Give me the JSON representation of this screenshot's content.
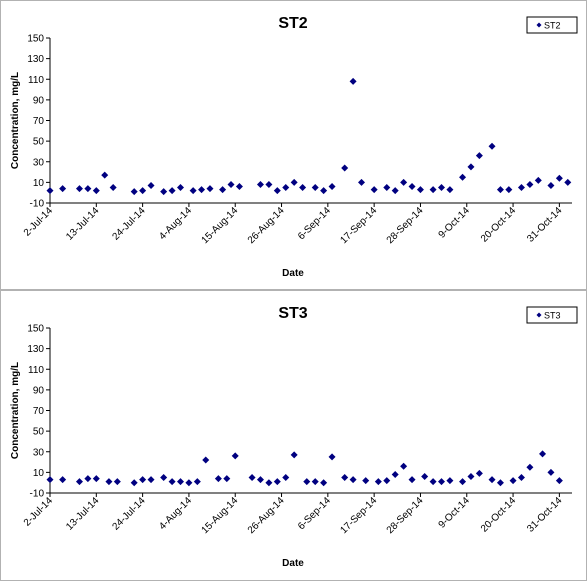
{
  "chart_data": [
    {
      "type": "scatter",
      "title": "ST2",
      "xlabel": "Date",
      "ylabel": "Concentration, mg/L",
      "legend": "upper right",
      "x": [
        "2014-07-02",
        "2014-07-05",
        "2014-07-09",
        "2014-07-11",
        "2014-07-13",
        "2014-07-15",
        "2014-07-17",
        "2014-07-22",
        "2014-07-24",
        "2014-07-26",
        "2014-07-29",
        "2014-07-31",
        "2014-08-02",
        "2014-08-05",
        "2014-08-07",
        "2014-08-09",
        "2014-08-12",
        "2014-08-14",
        "2014-08-16",
        "2014-08-21",
        "2014-08-23",
        "2014-08-25",
        "2014-08-27",
        "2014-08-29",
        "2014-08-31",
        "2014-09-03",
        "2014-09-05",
        "2014-09-07",
        "2014-09-10",
        "2014-09-12",
        "2014-09-14",
        "2014-09-17",
        "2014-09-20",
        "2014-09-22",
        "2014-09-24",
        "2014-09-26",
        "2014-09-28",
        "2014-10-01",
        "2014-10-03",
        "2014-10-05",
        "2014-10-08",
        "2014-10-10",
        "2014-10-12",
        "2014-10-15",
        "2014-10-17",
        "2014-10-19",
        "2014-10-22",
        "2014-10-24",
        "2014-10-26",
        "2014-10-29",
        "2014-10-31",
        "2014-11-02"
      ],
      "series": [
        {
          "name": "ST2",
          "color": "#000080",
          "values": [
            2,
            4,
            4,
            4,
            2,
            17,
            5,
            1,
            2,
            7,
            1,
            2,
            5,
            2,
            3,
            4,
            3,
            8,
            6,
            8,
            8,
            2,
            5,
            10,
            5,
            5,
            2,
            6,
            24,
            108,
            10,
            3,
            5,
            2,
            10,
            6,
            3,
            3,
            5,
            3,
            15,
            25,
            36,
            45,
            3,
            3,
            5,
            8,
            12,
            7,
            14,
            10
          ]
        }
      ],
      "xlim": [
        "2014-07-02",
        "2014-11-03"
      ],
      "xticks": [
        {
          "value": "2014-07-02",
          "label": "2-Jul-14"
        },
        {
          "value": "2014-07-13",
          "label": "13-Jul-14"
        },
        {
          "value": "2014-07-24",
          "label": "24-Jul-14"
        },
        {
          "value": "2014-08-04",
          "label": "4-Aug-14"
        },
        {
          "value": "2014-08-15",
          "label": "15-Aug-14"
        },
        {
          "value": "2014-08-26",
          "label": "26-Aug-14"
        },
        {
          "value": "2014-09-06",
          "label": "6-Sep-14"
        },
        {
          "value": "2014-09-17",
          "label": "17-Sep-14"
        },
        {
          "value": "2014-09-28",
          "label": "28-Sep-14"
        },
        {
          "value": "2014-10-09",
          "label": "9-Oct-14"
        },
        {
          "value": "2014-10-20",
          "label": "20-Oct-14"
        },
        {
          "value": "2014-10-31",
          "label": "31-Oct-14"
        }
      ],
      "ylim": [
        -10,
        150
      ],
      "yticks": [
        -10,
        10,
        30,
        50,
        70,
        90,
        110,
        130,
        150
      ]
    },
    {
      "type": "scatter",
      "title": "ST3",
      "xlabel": "Date",
      "ylabel": "Concentration, mg/L",
      "legend": "upper right",
      "x": [
        "2014-07-02",
        "2014-07-05",
        "2014-07-09",
        "2014-07-11",
        "2014-07-13",
        "2014-07-16",
        "2014-07-18",
        "2014-07-22",
        "2014-07-24",
        "2014-07-26",
        "2014-07-29",
        "2014-07-31",
        "2014-08-02",
        "2014-08-04",
        "2014-08-06",
        "2014-08-08",
        "2014-08-11",
        "2014-08-13",
        "2014-08-15",
        "2014-08-19",
        "2014-08-21",
        "2014-08-23",
        "2014-08-25",
        "2014-08-27",
        "2014-08-29",
        "2014-09-01",
        "2014-09-03",
        "2014-09-05",
        "2014-09-07",
        "2014-09-10",
        "2014-09-12",
        "2014-09-15",
        "2014-09-18",
        "2014-09-20",
        "2014-09-22",
        "2014-09-24",
        "2014-09-26",
        "2014-09-29",
        "2014-10-01",
        "2014-10-03",
        "2014-10-05",
        "2014-10-08",
        "2014-10-10",
        "2014-10-12",
        "2014-10-15",
        "2014-10-17",
        "2014-10-20",
        "2014-10-22",
        "2014-10-24",
        "2014-10-27",
        "2014-10-29",
        "2014-10-31"
      ],
      "series": [
        {
          "name": "ST3",
          "color": "#000080",
          "values": [
            3,
            3,
            1,
            4,
            4,
            1,
            1,
            0,
            3,
            3,
            5,
            1,
            1,
            0,
            1,
            22,
            4,
            4,
            26,
            5,
            3,
            0,
            1,
            5,
            27,
            1,
            1,
            0,
            25,
            5,
            3,
            2,
            1,
            2,
            8,
            16,
            3,
            6,
            1,
            1,
            2,
            1,
            6,
            9,
            3,
            0,
            2,
            5,
            15,
            28,
            10,
            2
          ]
        }
      ],
      "xlim": [
        "2014-07-02",
        "2014-11-03"
      ],
      "xticks": [
        {
          "value": "2014-07-02",
          "label": "2-Jul-14"
        },
        {
          "value": "2014-07-13",
          "label": "13-Jul-14"
        },
        {
          "value": "2014-07-24",
          "label": "24-Jul-14"
        },
        {
          "value": "2014-08-04",
          "label": "4-Aug-14"
        },
        {
          "value": "2014-08-15",
          "label": "15-Aug-14"
        },
        {
          "value": "2014-08-26",
          "label": "26-Aug-14"
        },
        {
          "value": "2014-09-06",
          "label": "6-Sep-14"
        },
        {
          "value": "2014-09-17",
          "label": "17-Sep-14"
        },
        {
          "value": "2014-09-28",
          "label": "28-Sep-14"
        },
        {
          "value": "2014-10-09",
          "label": "9-Oct-14"
        },
        {
          "value": "2014-10-20",
          "label": "20-Oct-14"
        },
        {
          "value": "2014-10-31",
          "label": "31-Oct-14"
        }
      ],
      "ylim": [
        -10,
        150
      ],
      "yticks": [
        -10,
        10,
        30,
        50,
        70,
        90,
        110,
        130,
        150
      ]
    }
  ]
}
